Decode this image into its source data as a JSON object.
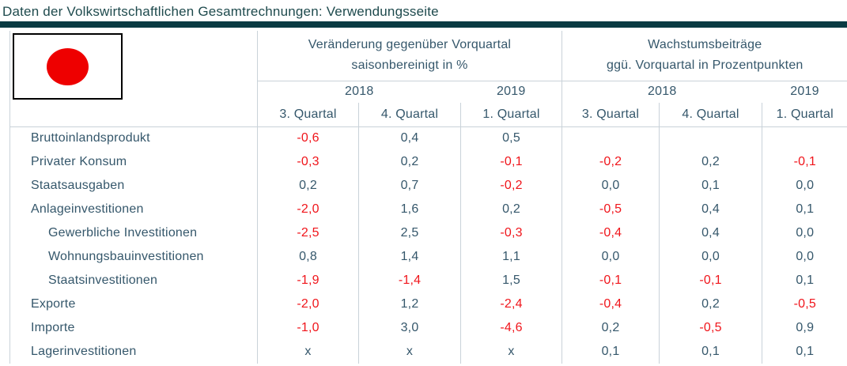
{
  "page": {
    "title": "Daten der Volkswirtschaftlichen Gesamtrechnungen: Verwendungsseite"
  },
  "flag": {
    "country": "Japan",
    "circle_color": "#ee0000"
  },
  "colors": {
    "title_text": "#1e4a4d",
    "title_bar": "#0a3b43",
    "table_text": "#35576b",
    "negative_value": "#f0151b",
    "grid_line": "#c9d2d9"
  },
  "table": {
    "groups": [
      {
        "title": "Veränderung gegenüber Vorquartal",
        "subtitle": "saisonbereinigt in %"
      },
      {
        "title": "Wachstumsbeiträge",
        "subtitle": "ggü. Vorquartal in Prozentpunkten"
      }
    ],
    "years": [
      "2018",
      "2019",
      "2018",
      "2019"
    ],
    "quarters": [
      "3. Quartal",
      "4. Quartal",
      "1. Quartal",
      "3. Quartal",
      "4. Quartal",
      "1. Quartal"
    ],
    "rows": [
      {
        "label": "Bruttoinlandsprodukt",
        "indent": false,
        "values": [
          "-0,6",
          "0,4",
          "0,5",
          "",
          "",
          ""
        ]
      },
      {
        "label": "Privater Konsum",
        "indent": false,
        "values": [
          "-0,3",
          "0,2",
          "-0,1",
          "-0,2",
          "0,2",
          "-0,1"
        ]
      },
      {
        "label": "Staatsausgaben",
        "indent": false,
        "values": [
          "0,2",
          "0,7",
          "-0,2",
          "0,0",
          "0,1",
          "0,0"
        ]
      },
      {
        "label": "Anlageinvestitionen",
        "indent": false,
        "values": [
          "-2,0",
          "1,6",
          "0,2",
          "-0,5",
          "0,4",
          "0,1"
        ]
      },
      {
        "label": "Gewerbliche Investitionen",
        "indent": true,
        "values": [
          "-2,5",
          "2,5",
          "-0,3",
          "-0,4",
          "0,4",
          "0,0"
        ]
      },
      {
        "label": "Wohnungsbauinvestitionen",
        "indent": true,
        "values": [
          "0,8",
          "1,4",
          "1,1",
          "0,0",
          "0,0",
          "0,0"
        ]
      },
      {
        "label": "Staatsinvestitionen",
        "indent": true,
        "values": [
          "-1,9",
          "-1,4",
          "1,5",
          "-0,1",
          "-0,1",
          "0,1"
        ]
      },
      {
        "label": "Exporte",
        "indent": false,
        "values": [
          "-2,0",
          "1,2",
          "-2,4",
          "-0,4",
          "0,2",
          "-0,5"
        ]
      },
      {
        "label": "Importe",
        "indent": false,
        "values": [
          "-1,0",
          "3,0",
          "-4,6",
          "0,2",
          "-0,5",
          "0,9"
        ]
      },
      {
        "label": "Lagerinvestitionen",
        "indent": false,
        "values": [
          "x",
          "x",
          "x",
          "0,1",
          "0,1",
          "0,1"
        ]
      }
    ]
  }
}
